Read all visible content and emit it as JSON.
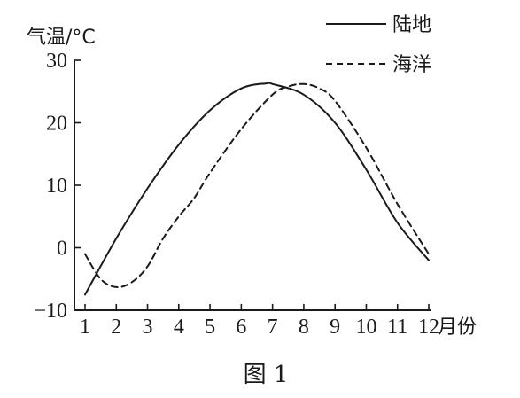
{
  "chart_data": {
    "type": "line",
    "ylabel": "气温/°C",
    "xlabel": "月份",
    "caption": "图 1",
    "x": [
      1,
      2,
      3,
      4,
      5,
      6,
      7,
      8,
      9,
      10,
      11,
      12
    ],
    "xticks": [
      "1",
      "2",
      "3",
      "4",
      "5",
      "6",
      "7",
      "8",
      "9",
      "10",
      "11",
      "12"
    ],
    "yticks": [
      -10,
      0,
      10,
      20,
      30
    ],
    "ylim": [
      -10,
      30
    ],
    "xlim": [
      1,
      12
    ],
    "series": [
      {
        "name": "陆地",
        "style": "solid",
        "color": "#1a1a1a",
        "x": [
          1,
          2,
          3,
          4,
          5,
          6,
          6.8,
          7,
          8,
          9,
          10,
          11,
          12
        ],
        "values": [
          -7.5,
          1.5,
          9.5,
          16.5,
          22,
          25.5,
          26.3,
          26.2,
          24.5,
          20,
          12.5,
          4,
          -2
        ]
      },
      {
        "name": "海洋",
        "style": "dashed",
        "color": "#1a1a1a",
        "x": [
          1,
          1.5,
          2,
          2.5,
          3,
          3.5,
          4,
          4.5,
          5,
          6,
          7,
          7.5,
          8,
          8.5,
          9,
          10,
          11,
          12
        ],
        "values": [
          -1,
          -5,
          -6.3,
          -5.5,
          -3,
          1.5,
          5,
          8,
          12,
          19,
          24.5,
          25.8,
          26.2,
          25.5,
          23.5,
          16,
          7,
          -1
        ]
      }
    ]
  }
}
